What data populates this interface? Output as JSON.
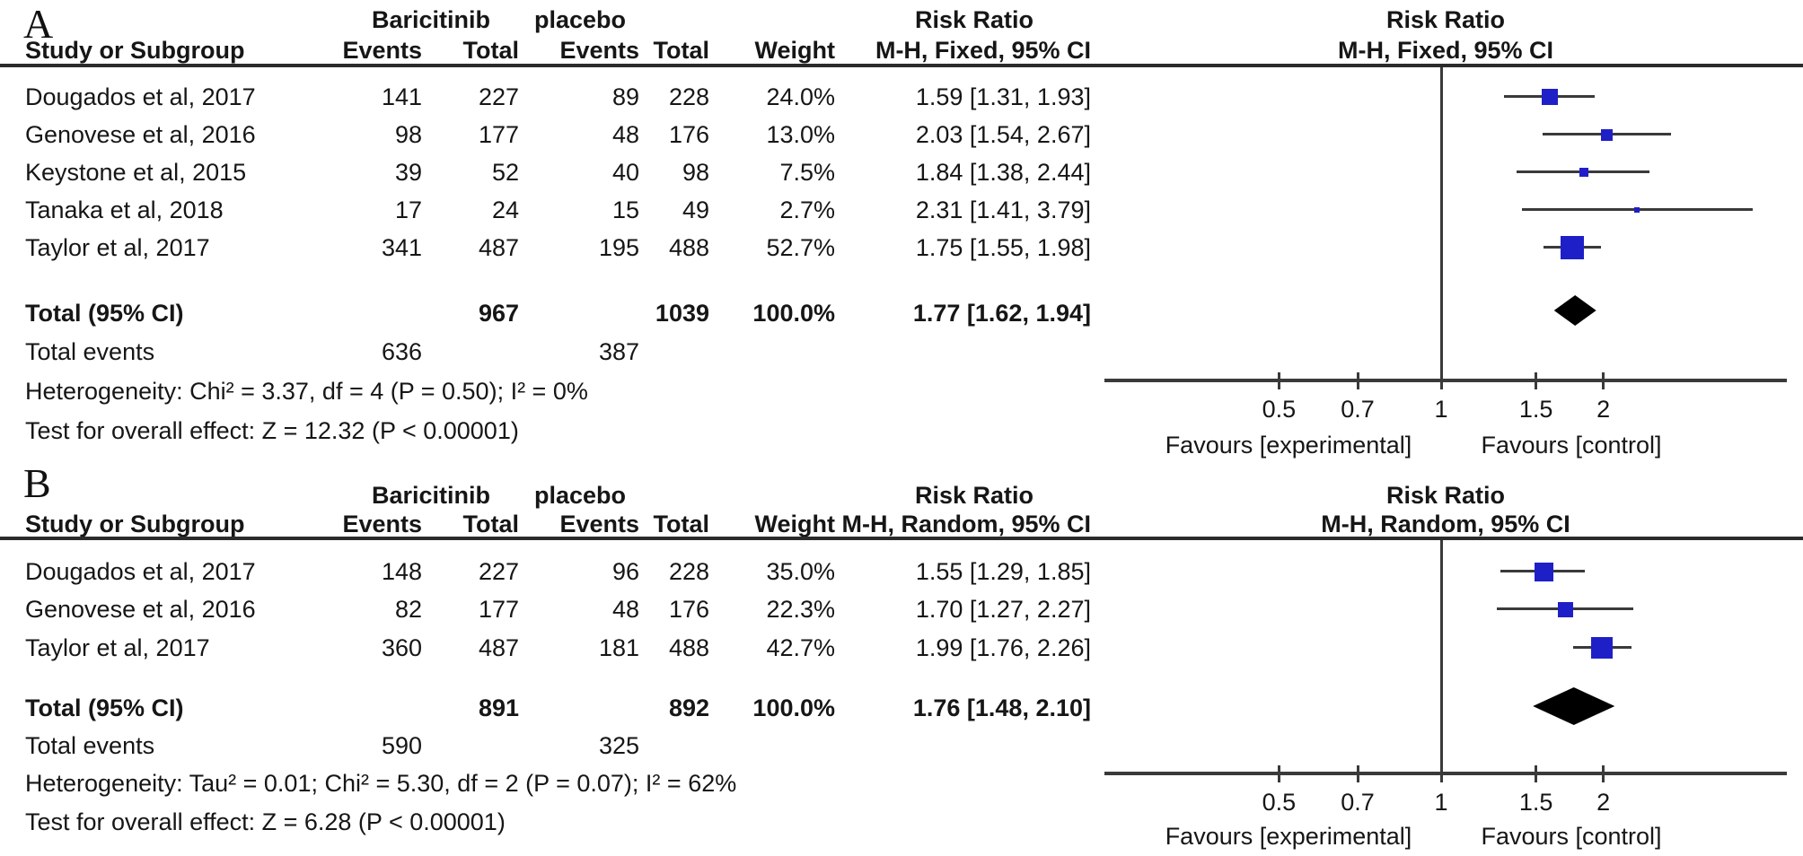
{
  "colors": {
    "marker_blue": "#1f1fc8",
    "summary_diamond": "#000000",
    "line_gray": "#3a3a3a",
    "rule_dark": "#2b2b2b",
    "text": "#161616"
  },
  "chart_data": [
    {
      "type": "forest",
      "panel_label": "A",
      "effect_measure": "Risk Ratio",
      "model": "Fixed",
      "group_headers": {
        "experimental": "Baricitinib",
        "control": "placebo",
        "effect": "Risk Ratio"
      },
      "plot_header": {
        "line1": "Risk Ratio",
        "line2": "M-H, Fixed, 95% CI"
      },
      "column_headers": {
        "study": "Study or Subgroup",
        "events1": "Events",
        "total1": "Total",
        "events2": "Events",
        "total2": "Total",
        "weight": "Weight",
        "effect": "M-H, Fixed, 95% CI"
      },
      "x_axis": {
        "scale": "log",
        "null_line": 1,
        "ticks": [
          "0.5",
          "0.7",
          "1",
          "1.5",
          "2"
        ],
        "range": [
          0.24,
          4.35
        ]
      },
      "favours_left": "Favours [experimental]",
      "favours_right": "Favours [control]",
      "studies": [
        {
          "name": "Dougados et al, 2017",
          "events1": "141",
          "total1": "227",
          "events2": "89",
          "total2": "228",
          "weight": "24.0%",
          "weight_pct": 24.0,
          "rr": 1.59,
          "ci_low": 1.31,
          "ci_high": 1.93,
          "effect_text": "1.59 [1.31, 1.93]"
        },
        {
          "name": "Genovese et al, 2016",
          "events1": "98",
          "total1": "177",
          "events2": "48",
          "total2": "176",
          "weight": "13.0%",
          "weight_pct": 13.0,
          "rr": 2.03,
          "ci_low": 1.54,
          "ci_high": 2.67,
          "effect_text": "2.03 [1.54, 2.67]"
        },
        {
          "name": "Keystone et al, 2015",
          "events1": "39",
          "total1": "52",
          "events2": "40",
          "total2": "98",
          "weight": "7.5%",
          "weight_pct": 7.5,
          "rr": 1.84,
          "ci_low": 1.38,
          "ci_high": 2.44,
          "effect_text": "1.84 [1.38, 2.44]"
        },
        {
          "name": "Tanaka et al, 2018",
          "events1": "17",
          "total1": "24",
          "events2": "15",
          "total2": "49",
          "weight": "2.7%",
          "weight_pct": 2.7,
          "rr": 2.31,
          "ci_low": 1.41,
          "ci_high": 3.79,
          "effect_text": "2.31 [1.41, 3.79]"
        },
        {
          "name": "Taylor et al, 2017",
          "events1": "341",
          "total1": "487",
          "events2": "195",
          "total2": "488",
          "weight": "52.7%",
          "weight_pct": 52.7,
          "rr": 1.75,
          "ci_low": 1.55,
          "ci_high": 1.98,
          "effect_text": "1.75 [1.55, 1.98]"
        }
      ],
      "total": {
        "label": "Total (95% CI)",
        "total1": "967",
        "total2": "1039",
        "weight": "100.0%",
        "rr": 1.77,
        "ci_low": 1.62,
        "ci_high": 1.94,
        "effect_text": "1.77 [1.62, 1.94]"
      },
      "total_events": {
        "label": "Total events",
        "events1": "636",
        "events2": "387"
      },
      "heterogeneity": "Heterogeneity: Chi² = 3.37, df = 4 (P = 0.50); I² = 0%",
      "overall_effect": "Test for overall effect: Z = 12.32 (P < 0.00001)"
    },
    {
      "type": "forest",
      "panel_label": "B",
      "effect_measure": "Risk Ratio",
      "model": "Random",
      "group_headers": {
        "experimental": "Baricitinib",
        "control": "placebo",
        "effect": "Risk Ratio"
      },
      "plot_header": {
        "line1": "Risk Ratio",
        "line2": "M-H, Random, 95% CI"
      },
      "column_headers": {
        "study": "Study or Subgroup",
        "events1": "Events",
        "total1": "Total",
        "events2": "Events",
        "total2": "Total",
        "weight": "Weight",
        "effect": "M-H, Random, 95% CI"
      },
      "x_axis": {
        "scale": "log",
        "null_line": 1,
        "ticks": [
          "0.5",
          "0.7",
          "1",
          "1.5",
          "2"
        ],
        "range": [
          0.24,
          4.35
        ]
      },
      "favours_left": "Favours [experimental]",
      "favours_right": "Favours [control]",
      "studies": [
        {
          "name": "Dougados et al, 2017",
          "events1": "148",
          "total1": "227",
          "events2": "96",
          "total2": "228",
          "weight": "35.0%",
          "weight_pct": 35.0,
          "rr": 1.55,
          "ci_low": 1.29,
          "ci_high": 1.85,
          "effect_text": "1.55 [1.29, 1.85]"
        },
        {
          "name": "Genovese et al, 2016",
          "events1": "82",
          "total1": "177",
          "events2": "48",
          "total2": "176",
          "weight": "22.3%",
          "weight_pct": 22.3,
          "rr": 1.7,
          "ci_low": 1.27,
          "ci_high": 2.27,
          "effect_text": "1.70 [1.27, 2.27]"
        },
        {
          "name": "Taylor et al, 2017",
          "events1": "360",
          "total1": "487",
          "events2": "181",
          "total2": "488",
          "weight": "42.7%",
          "weight_pct": 42.7,
          "rr": 1.99,
          "ci_low": 1.76,
          "ci_high": 2.26,
          "effect_text": "1.99 [1.76, 2.26]"
        }
      ],
      "total": {
        "label": "Total (95% CI)",
        "total1": "891",
        "total2": "892",
        "weight": "100.0%",
        "rr": 1.76,
        "ci_low": 1.48,
        "ci_high": 2.1,
        "effect_text": "1.76 [1.48, 2.10]"
      },
      "total_events": {
        "label": "Total events",
        "events1": "590",
        "events2": "325"
      },
      "heterogeneity": "Heterogeneity: Tau² = 0.01; Chi² = 5.30, df = 2 (P = 0.07); I² = 62%",
      "overall_effect": "Test for overall effect: Z = 6.28 (P < 0.00001)"
    }
  ]
}
